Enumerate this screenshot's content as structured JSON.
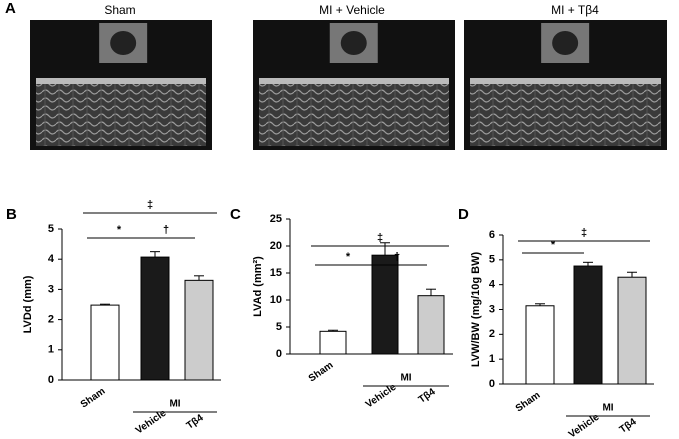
{
  "panel_a": {
    "label": "A",
    "images": [
      {
        "title": "Sham"
      },
      {
        "title": "MI + Vehicle"
      },
      {
        "title": "MI + Tβ4"
      }
    ]
  },
  "chart_data": [
    {
      "type": "bar",
      "panel_label": "B",
      "ylabel": "LVDd (mm)",
      "categories": [
        "Sham",
        "Vehicle",
        "Tβ4"
      ],
      "values": [
        2.48,
        4.07,
        3.3
      ],
      "errors": [
        0.03,
        0.18,
        0.15
      ],
      "colors": [
        "#ffffff",
        "#1a1a1a",
        "#cccccc"
      ],
      "ylim": [
        0,
        5
      ],
      "yticks": [
        0,
        1,
        2,
        3,
        4,
        5
      ],
      "group": {
        "label": "MI",
        "members": [
          "Vehicle",
          "Tβ4"
        ]
      },
      "significance": [
        {
          "label": "*",
          "pair": [
            "Sham",
            "Vehicle"
          ]
        },
        {
          "label": "†",
          "pair": [
            "Vehicle",
            "Tβ4"
          ]
        },
        {
          "label": "‡",
          "pair": [
            "Sham",
            "Tβ4"
          ]
        }
      ]
    },
    {
      "type": "bar",
      "panel_label": "C",
      "ylabel": "LVAd (mm²)",
      "categories": [
        "Sham",
        "Vehicle",
        "Tβ4"
      ],
      "values": [
        4.2,
        18.3,
        10.8
      ],
      "errors": [
        0.2,
        2.3,
        1.2
      ],
      "colors": [
        "#ffffff",
        "#1a1a1a",
        "#cccccc"
      ],
      "ylim": [
        0,
        25
      ],
      "yticks": [
        0,
        5,
        10,
        15,
        20,
        25
      ],
      "group": {
        "label": "MI",
        "members": [
          "Vehicle",
          "Tβ4"
        ]
      },
      "significance": [
        {
          "label": "*",
          "pair": [
            "Sham",
            "Vehicle"
          ]
        },
        {
          "label": "†",
          "pair": [
            "Vehicle",
            "Tβ4"
          ]
        },
        {
          "label": "‡",
          "pair": [
            "Sham",
            "Tβ4"
          ]
        }
      ]
    },
    {
      "type": "bar",
      "panel_label": "D",
      "ylabel": "LVW/BW (mg/10g BW)",
      "categories": [
        "Sham",
        "Vehicle",
        "Tβ4"
      ],
      "values": [
        3.15,
        4.75,
        4.3
      ],
      "errors": [
        0.08,
        0.15,
        0.2
      ],
      "colors": [
        "#ffffff",
        "#1a1a1a",
        "#cccccc"
      ],
      "ylim": [
        0,
        6
      ],
      "yticks": [
        0,
        1,
        2,
        3,
        4,
        5,
        6
      ],
      "group": {
        "label": "MI",
        "members": [
          "Vehicle",
          "Tβ4"
        ]
      },
      "significance": [
        {
          "label": "*",
          "pair": [
            "Sham",
            "Vehicle"
          ]
        },
        {
          "label": "‡",
          "pair": [
            "Sham",
            "Tβ4"
          ]
        }
      ]
    }
  ]
}
